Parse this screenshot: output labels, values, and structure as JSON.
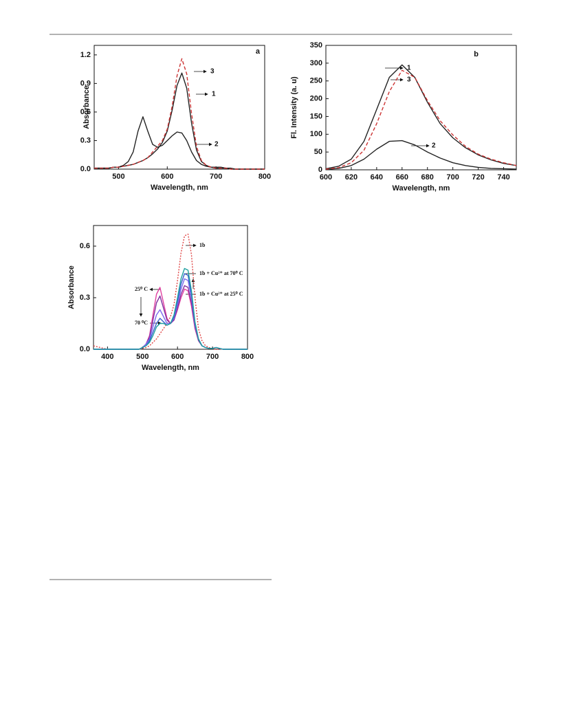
{
  "chart_data": [
    {
      "type": "line",
      "xlabel": "Wavelength, nm",
      "ylabel": "Absorbance",
      "xlim": [
        450,
        800
      ],
      "xticks": [
        500,
        600,
        700,
        800
      ],
      "ylim": [
        0,
        1.3
      ],
      "yticks": [
        {
          "value": 0,
          "label": "0.0"
        },
        0.3,
        0.6,
        0.9,
        1.2
      ],
      "annotations": [
        "a",
        "3",
        "1",
        "2"
      ],
      "x": [
        450,
        460,
        470,
        480,
        490,
        500,
        510,
        520,
        530,
        540,
        550,
        560,
        570,
        580,
        590,
        600,
        610,
        620,
        630,
        640,
        650,
        660,
        670,
        680,
        690,
        700,
        710,
        720,
        730,
        740,
        750,
        760,
        770,
        780,
        790,
        800
      ],
      "series": [
        {
          "color": "#222222",
          "values": [
            0.01,
            0.01,
            0.01,
            0.01,
            0.02,
            0.02,
            0.03,
            0.04,
            0.05,
            0.07,
            0.09,
            0.12,
            0.16,
            0.21,
            0.28,
            0.4,
            0.62,
            0.88,
            1.01,
            0.85,
            0.48,
            0.2,
            0.08,
            0.04,
            0.02,
            0.01,
            0.01,
            0.01,
            0,
            0,
            0,
            0,
            0,
            0,
            0,
            0
          ]
        },
        {
          "color": "#222222",
          "values": [
            0.01,
            0.01,
            0.01,
            0.01,
            0.02,
            0.02,
            0.04,
            0.08,
            0.18,
            0.4,
            0.55,
            0.4,
            0.26,
            0.23,
            0.25,
            0.3,
            0.35,
            0.39,
            0.38,
            0.3,
            0.18,
            0.09,
            0.05,
            0.03,
            0.02,
            0.02,
            0.02,
            0.01,
            0.01,
            0,
            0,
            0,
            0,
            0,
            0,
            0
          ]
        },
        {
          "color": "#cc3333",
          "dash": "5,3",
          "values": [
            0.01,
            0.01,
            0.01,
            0.01,
            0.02,
            0.02,
            0.03,
            0.04,
            0.05,
            0.07,
            0.09,
            0.12,
            0.18,
            0.24,
            0.3,
            0.42,
            0.66,
            0.98,
            1.16,
            1.0,
            0.58,
            0.24,
            0.09,
            0.04,
            0.02,
            0.01,
            0.01,
            0.01,
            0,
            0,
            0,
            0,
            0,
            0,
            0,
            0
          ]
        }
      ]
    },
    {
      "type": "line",
      "xlabel": "Wavelength, nm",
      "ylabel": "Fl. Intensity (a. u)",
      "xlim": [
        600,
        750
      ],
      "xticks": [
        600,
        620,
        640,
        660,
        680,
        700,
        720,
        740
      ],
      "ylim": [
        0,
        350
      ],
      "yticks": [
        0,
        50,
        100,
        150,
        200,
        250,
        300,
        350
      ],
      "annotations": [
        "b",
        "1",
        "3",
        "2"
      ],
      "x": [
        600,
        610,
        620,
        630,
        640,
        650,
        660,
        670,
        680,
        690,
        700,
        710,
        720,
        730,
        740,
        750
      ],
      "series": [
        {
          "color": "#222222",
          "values": [
            3,
            10,
            30,
            80,
            170,
            260,
            295,
            260,
            190,
            130,
            90,
            62,
            42,
            28,
            18,
            12
          ]
        },
        {
          "color": "#222222",
          "values": [
            1,
            4,
            12,
            30,
            58,
            80,
            82,
            70,
            50,
            33,
            20,
            12,
            7,
            4,
            3,
            2
          ]
        },
        {
          "color": "#cc3333",
          "dash": "5,3",
          "values": [
            2,
            6,
            20,
            55,
            130,
            220,
            280,
            260,
            195,
            138,
            98,
            66,
            44,
            30,
            20,
            12
          ]
        }
      ]
    },
    {
      "type": "line",
      "xlabel": "Wavelength, nm",
      "ylabel": "Absorbance",
      "xlim": [
        360,
        800
      ],
      "xticks": [
        400,
        500,
        600,
        700,
        800
      ],
      "ylim": [
        0,
        0.72
      ],
      "yticks": [
        {
          "value": 0,
          "label": "0.0"
        },
        0.3,
        0.6
      ],
      "annotations": [
        "1b",
        "1b + Cu²⁺ at 70⁰ C",
        "1b + Cu²⁺ at 25⁰ C",
        "25⁰ C",
        "70 ⁰C"
      ],
      "x": [
        360,
        370,
        380,
        390,
        400,
        410,
        420,
        430,
        440,
        450,
        460,
        470,
        480,
        490,
        500,
        510,
        520,
        530,
        540,
        550,
        560,
        570,
        580,
        590,
        600,
        610,
        620,
        630,
        640,
        650,
        660,
        670,
        680,
        690,
        700,
        710,
        720,
        730,
        740,
        750,
        760,
        770,
        780,
        790,
        800
      ],
      "series": [
        {
          "color": "#e04545",
          "dash": "2,2",
          "values": [
            0.02,
            0.015,
            0.01,
            0.005,
            0,
            0,
            0,
            0,
            0,
            0,
            0,
            0,
            0,
            0,
            0.005,
            0.01,
            0.02,
            0.04,
            0.06,
            0.09,
            0.12,
            0.15,
            0.19,
            0.26,
            0.4,
            0.56,
            0.66,
            0.67,
            0.55,
            0.3,
            0.12,
            0.05,
            0.02,
            0.01,
            0.005,
            0,
            0,
            0,
            0,
            0,
            0,
            0,
            0,
            0,
            0
          ]
        },
        {
          "color": "#e040a0",
          "values": [
            0,
            0,
            0,
            0,
            0,
            0,
            0,
            0,
            0,
            0,
            0,
            0,
            0,
            0,
            0.01,
            0.03,
            0.08,
            0.2,
            0.32,
            0.36,
            0.27,
            0.18,
            0.15,
            0.17,
            0.23,
            0.3,
            0.35,
            0.34,
            0.25,
            0.12,
            0.05,
            0.02,
            0.01,
            0.005,
            0.005,
            0.01,
            0.005,
            0,
            0,
            0,
            0,
            0,
            0,
            0,
            0
          ]
        },
        {
          "color": "#8030a0",
          "values": [
            0,
            0,
            0,
            0,
            0,
            0,
            0,
            0,
            0,
            0,
            0,
            0,
            0,
            0,
            0.01,
            0.03,
            0.07,
            0.17,
            0.27,
            0.31,
            0.24,
            0.17,
            0.15,
            0.17,
            0.24,
            0.32,
            0.37,
            0.36,
            0.27,
            0.13,
            0.05,
            0.02,
            0.01,
            0.005,
            0.005,
            0.01,
            0.005,
            0,
            0,
            0,
            0,
            0,
            0,
            0,
            0
          ]
        },
        {
          "color": "#7b68ee",
          "values": [
            0,
            0,
            0,
            0,
            0,
            0,
            0,
            0,
            0,
            0,
            0,
            0,
            0,
            0,
            0.01,
            0.03,
            0.06,
            0.13,
            0.2,
            0.23,
            0.19,
            0.15,
            0.15,
            0.18,
            0.26,
            0.35,
            0.41,
            0.4,
            0.3,
            0.14,
            0.06,
            0.02,
            0.01,
            0.005,
            0.005,
            0.01,
            0.005,
            0,
            0,
            0,
            0,
            0,
            0,
            0,
            0
          ]
        },
        {
          "color": "#3a5fcd",
          "values": [
            0,
            0,
            0,
            0,
            0,
            0,
            0,
            0,
            0,
            0,
            0,
            0,
            0,
            0,
            0.01,
            0.02,
            0.05,
            0.1,
            0.15,
            0.18,
            0.16,
            0.14,
            0.15,
            0.19,
            0.28,
            0.38,
            0.44,
            0.43,
            0.32,
            0.15,
            0.06,
            0.02,
            0.01,
            0.005,
            0.005,
            0.01,
            0.005,
            0,
            0,
            0,
            0,
            0,
            0,
            0,
            0
          ]
        },
        {
          "color": "#20a0a0",
          "values": [
            0,
            0,
            0,
            0,
            0,
            0,
            0,
            0,
            0,
            0,
            0,
            0,
            0,
            0,
            0.01,
            0.02,
            0.04,
            0.08,
            0.13,
            0.15,
            0.15,
            0.14,
            0.15,
            0.2,
            0.3,
            0.41,
            0.47,
            0.46,
            0.34,
            0.16,
            0.06,
            0.02,
            0.01,
            0.005,
            0.005,
            0.01,
            0.005,
            0,
            0,
            0,
            0,
            0,
            0,
            0,
            0
          ]
        }
      ]
    }
  ]
}
